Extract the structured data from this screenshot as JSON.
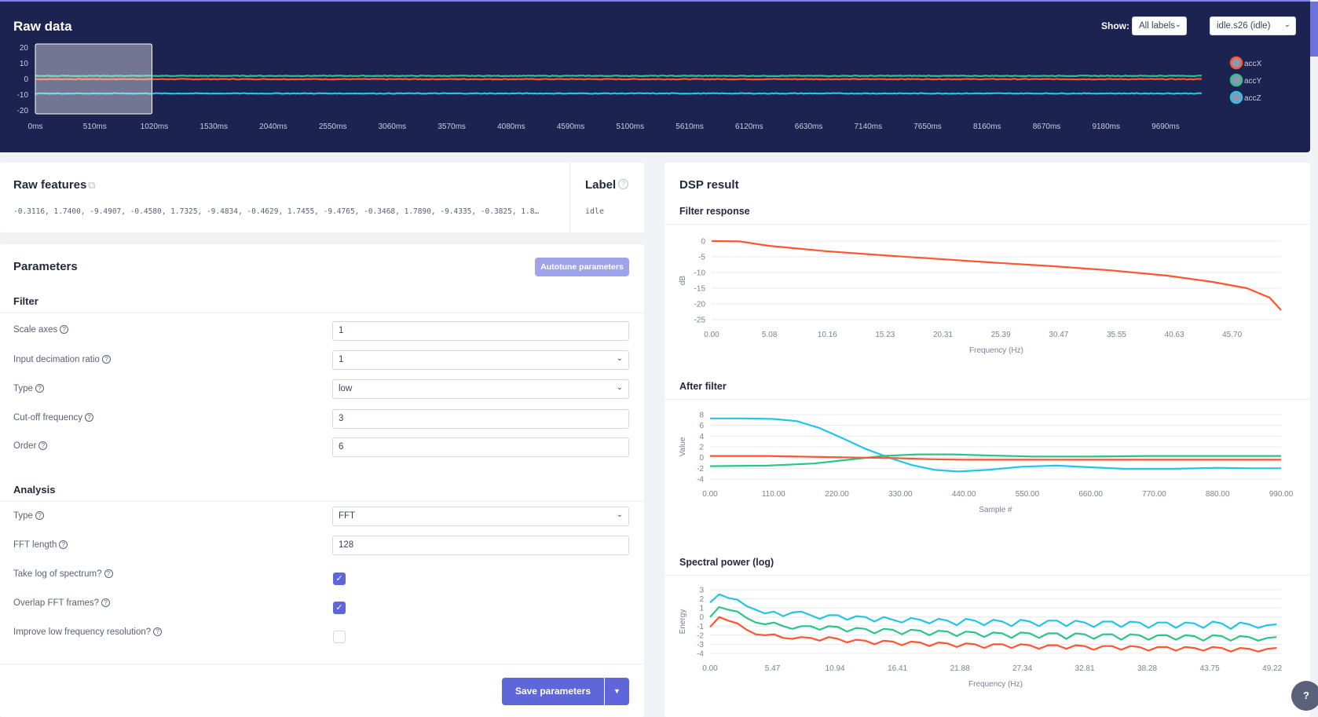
{
  "raw_data": {
    "title": "Raw data",
    "show_label": "Show:",
    "show_value": "All labels",
    "sample_value": "idle.s26 (idle)",
    "legend": [
      {
        "name": "accX",
        "color": "#ff5530"
      },
      {
        "name": "accY",
        "color": "#2bc48a"
      },
      {
        "name": "accZ",
        "color": "#22c5e8"
      }
    ],
    "chart_data": {
      "type": "line",
      "ylim": [
        -20,
        20
      ],
      "y_ticks": [
        "20",
        "10",
        "0",
        "-10",
        "-20"
      ],
      "x_ticks": [
        "0ms",
        "510ms",
        "1020ms",
        "1530ms",
        "2040ms",
        "2550ms",
        "3060ms",
        "3570ms",
        "4080ms",
        "4590ms",
        "5100ms",
        "5610ms",
        "6120ms",
        "6630ms",
        "7140ms",
        "7650ms",
        "8160ms",
        "8670ms",
        "9180ms",
        "9690ms"
      ],
      "xlim_ms": [
        0,
        10000
      ],
      "series": [
        {
          "name": "accX",
          "color": "#ff5530",
          "level": -0.4
        },
        {
          "name": "accY",
          "color": "#2bc48a",
          "level": 1.7
        },
        {
          "name": "accZ",
          "color": "#22c5e8",
          "level": -9.5
        }
      ],
      "window_ms": [
        0,
        1000
      ]
    }
  },
  "raw_features": {
    "title": "Raw features",
    "values": "-0.3116, 1.7400, -9.4907, -0.4580, 1.7325, -9.4834, -0.4629, 1.7455, -9.4765, -0.3468, 1.7890, -9.4335, -0.3825, 1.8…"
  },
  "label": {
    "title": "Label",
    "value": "idle"
  },
  "parameters": {
    "title": "Parameters",
    "autotune_label": "Autotune parameters",
    "filter_section": "Filter",
    "scale_axes_label": "Scale axes",
    "scale_axes_value": "1",
    "decimation_label": "Input decimation ratio",
    "decimation_value": "1",
    "filter_type_label": "Type",
    "filter_type_value": "low",
    "cutoff_label": "Cut-off frequency",
    "cutoff_value": "3",
    "order_label": "Order",
    "order_value": "6",
    "analysis_section": "Analysis",
    "analysis_type_label": "Type",
    "analysis_type_value": "FFT",
    "fft_length_label": "FFT length",
    "fft_length_value": "128",
    "take_log_label": "Take log of spectrum?",
    "take_log_checked": true,
    "overlap_label": "Overlap FFT frames?",
    "overlap_checked": true,
    "improve_low_label": "Improve low frequency resolution?",
    "improve_low_checked": false,
    "save_label": "Save parameters"
  },
  "dsp": {
    "title": "DSP result",
    "charts": [
      {
        "title": "Filter response",
        "type": "line",
        "xlabel": "Frequency (Hz)",
        "ylabel": "dB",
        "x_ticks": [
          "0.00",
          "5.08",
          "10.16",
          "15.23",
          "20.31",
          "25.39",
          "30.47",
          "35.55",
          "40.63",
          "45.70"
        ],
        "y_ticks": [
          "0",
          "-5",
          "-10",
          "-15",
          "-20",
          "-25"
        ],
        "xlim": [
          0,
          50
        ],
        "ylim": [
          -25,
          0
        ],
        "series": [
          {
            "color": "#ff5530",
            "x": [
              0,
              2.5,
              5,
              10,
              15,
              20,
              25,
              30,
              35,
              40,
              44,
              47,
              49,
              50
            ],
            "y": [
              0,
              -0.1,
              -1.5,
              -3.2,
              -4.5,
              -5.7,
              -6.9,
              -8.0,
              -9.3,
              -11.0,
              -13.0,
              -15.0,
              -18.0,
              -22.0
            ]
          }
        ]
      },
      {
        "title": "After filter",
        "type": "line",
        "xlabel": "Sample #",
        "ylabel": "Value",
        "x_ticks": [
          "0.00",
          "110.00",
          "220.00",
          "330.00",
          "440.00",
          "550.00",
          "660.00",
          "770.00",
          "880.00",
          "990.00"
        ],
        "y_ticks": [
          "8",
          "6",
          "4",
          "2",
          "0",
          "-2",
          "-4"
        ],
        "xlim": [
          0,
          990
        ],
        "ylim": [
          -4,
          8
        ],
        "series": [
          {
            "color": "#22c5e8",
            "x": [
              0,
              60,
              110,
              150,
              190,
              230,
              270,
              310,
              350,
              390,
              430,
              480,
              540,
              600,
              660,
              720,
              800,
              880,
              940,
              990
            ],
            "y": [
              7.3,
              7.3,
              7.2,
              6.8,
              5.5,
              3.6,
              1.6,
              0.0,
              -1.4,
              -2.3,
              -2.6,
              -2.3,
              -1.7,
              -1.5,
              -1.8,
              -2.1,
              -2.1,
              -1.9,
              -2.0,
              -2.0
            ]
          },
          {
            "color": "#2bc48a",
            "x": [
              0,
              100,
              180,
              240,
              300,
              360,
              420,
              480,
              560,
              660,
              760,
              880,
              990
            ],
            "y": [
              -1.6,
              -1.5,
              -1.1,
              -0.4,
              0.3,
              0.6,
              0.6,
              0.4,
              0.2,
              0.2,
              0.3,
              0.3,
              0.3
            ]
          },
          {
            "color": "#ff5530",
            "x": [
              0,
              100,
              200,
              260,
              320,
              380,
              440,
              520,
              600,
              700,
              800,
              900,
              990
            ],
            "y": [
              0.3,
              0.3,
              0.1,
              0.0,
              -0.1,
              -0.3,
              -0.4,
              -0.4,
              -0.4,
              -0.4,
              -0.4,
              -0.4,
              -0.4
            ]
          }
        ]
      },
      {
        "title": "Spectral power (log)",
        "type": "line",
        "xlabel": "Frequency (Hz)",
        "ylabel": "Energy",
        "x_ticks": [
          "0.00",
          "5.47",
          "10.94",
          "16.41",
          "21.88",
          "27.34",
          "32.81",
          "38.28",
          "43.75",
          "49.22"
        ],
        "y_ticks": [
          "3",
          "2",
          "1",
          "0",
          "-1",
          "-2",
          "-3",
          "-4"
        ],
        "xlim": [
          0,
          50
        ],
        "ylim": [
          -4,
          3
        ],
        "series": [
          {
            "color": "#22c5e8",
            "x": [
              0,
              0.8,
              1.6,
              2.4,
              3.2,
              4.0,
              4.8,
              5.6,
              6.4,
              7.2,
              8.0,
              8.8,
              9.6,
              10.4,
              11.2,
              12.0,
              12.8,
              13.6,
              14.4,
              15.2,
              16.0,
              16.8,
              17.6,
              18.4,
              19.2,
              20.0,
              20.8,
              21.6,
              22.4,
              23.2,
              24.0,
              24.8,
              25.6,
              26.4,
              27.2,
              28.0,
              28.8,
              29.6,
              30.4,
              31.2,
              32.0,
              32.8,
              33.6,
              34.4,
              35.2,
              36.0,
              36.8,
              37.6,
              38.4,
              39.2,
              40.0,
              40.8,
              41.6,
              42.4,
              43.2,
              44.0,
              44.8,
              45.6,
              46.4,
              47.2,
              48.0,
              48.8,
              49.6
            ],
            "y": [
              1.6,
              2.5,
              2.1,
              1.9,
              1.2,
              0.8,
              0.4,
              0.6,
              0.1,
              0.5,
              0.6,
              0.2,
              -0.2,
              0.2,
              0.2,
              -0.3,
              0.1,
              0.0,
              -0.5,
              0.0,
              -0.3,
              -0.6,
              -0.1,
              -0.3,
              -0.7,
              -0.2,
              -0.4,
              -0.9,
              -0.2,
              -0.4,
              -0.9,
              -0.3,
              -0.5,
              -1.0,
              -0.3,
              -0.5,
              -1.0,
              -0.4,
              -0.4,
              -1.0,
              -0.4,
              -0.6,
              -1.1,
              -0.5,
              -0.5,
              -1.1,
              -0.5,
              -0.6,
              -1.2,
              -0.6,
              -0.6,
              -1.2,
              -0.6,
              -0.7,
              -1.2,
              -0.5,
              -0.7,
              -1.3,
              -0.6,
              -0.8,
              -1.2,
              -0.9,
              -0.8
            ]
          },
          {
            "color": "#2bc48a",
            "x": [
              0,
              0.8,
              1.6,
              2.4,
              3.2,
              4.0,
              4.8,
              5.6,
              6.4,
              7.2,
              8.0,
              8.8,
              9.6,
              10.4,
              11.2,
              12.0,
              12.8,
              13.6,
              14.4,
              15.2,
              16.0,
              16.8,
              17.6,
              18.4,
              19.2,
              20.0,
              20.8,
              21.6,
              22.4,
              23.2,
              24.0,
              24.8,
              25.6,
              26.4,
              27.2,
              28.0,
              28.8,
              29.6,
              30.4,
              31.2,
              32.0,
              32.8,
              33.6,
              34.4,
              35.2,
              36.0,
              36.8,
              37.6,
              38.4,
              39.2,
              40.0,
              40.8,
              41.6,
              42.4,
              43.2,
              44.0,
              44.8,
              45.6,
              46.4,
              47.2,
              48.0,
              48.8,
              49.6
            ],
            "y": [
              0.0,
              1.1,
              0.8,
              0.6,
              -0.1,
              -0.6,
              -0.8,
              -0.6,
              -1.0,
              -1.3,
              -1.0,
              -1.0,
              -1.4,
              -1.0,
              -1.1,
              -1.6,
              -1.2,
              -1.3,
              -1.8,
              -1.3,
              -1.4,
              -1.9,
              -1.4,
              -1.5,
              -2.0,
              -1.5,
              -1.6,
              -2.1,
              -1.6,
              -1.7,
              -2.2,
              -1.7,
              -1.8,
              -2.3,
              -1.7,
              -1.8,
              -2.3,
              -1.8,
              -1.8,
              -2.4,
              -1.8,
              -1.9,
              -2.4,
              -1.9,
              -1.9,
              -2.5,
              -1.9,
              -2.0,
              -2.5,
              -2.0,
              -2.0,
              -2.5,
              -2.0,
              -2.1,
              -2.6,
              -2.0,
              -2.1,
              -2.6,
              -2.1,
              -2.2,
              -2.6,
              -2.3,
              -2.2
            ]
          },
          {
            "color": "#ff5530",
            "x": [
              0,
              0.8,
              1.6,
              2.4,
              3.2,
              4.0,
              4.8,
              5.6,
              6.4,
              7.2,
              8.0,
              8.8,
              9.6,
              10.4,
              11.2,
              12.0,
              12.8,
              13.6,
              14.4,
              15.2,
              16.0,
              16.8,
              17.6,
              18.4,
              19.2,
              20.0,
              20.8,
              21.6,
              22.4,
              23.2,
              24.0,
              24.8,
              25.6,
              26.4,
              27.2,
              28.0,
              28.8,
              29.6,
              30.4,
              31.2,
              32.0,
              32.8,
              33.6,
              34.4,
              35.2,
              36.0,
              36.8,
              37.6,
              38.4,
              39.2,
              40.0,
              40.8,
              41.6,
              42.4,
              43.2,
              44.0,
              44.8,
              45.6,
              46.4,
              47.2,
              48.0,
              48.8,
              49.6
            ],
            "y": [
              -1.1,
              0.0,
              -0.4,
              -0.7,
              -1.4,
              -1.9,
              -2.0,
              -1.9,
              -2.3,
              -2.4,
              -2.2,
              -2.3,
              -2.6,
              -2.2,
              -2.4,
              -2.8,
              -2.5,
              -2.6,
              -3.0,
              -2.6,
              -2.7,
              -3.1,
              -2.7,
              -2.8,
              -3.2,
              -2.8,
              -2.9,
              -3.3,
              -2.9,
              -3.0,
              -3.4,
              -3.0,
              -3.0,
              -3.4,
              -3.0,
              -3.1,
              -3.5,
              -3.1,
              -3.1,
              -3.5,
              -3.1,
              -3.2,
              -3.6,
              -3.2,
              -3.2,
              -3.6,
              -3.2,
              -3.3,
              -3.7,
              -3.3,
              -3.3,
              -3.7,
              -3.3,
              -3.4,
              -3.7,
              -3.3,
              -3.4,
              -3.8,
              -3.4,
              -3.5,
              -3.8,
              -3.5,
              -3.4
            ]
          }
        ]
      }
    ]
  }
}
